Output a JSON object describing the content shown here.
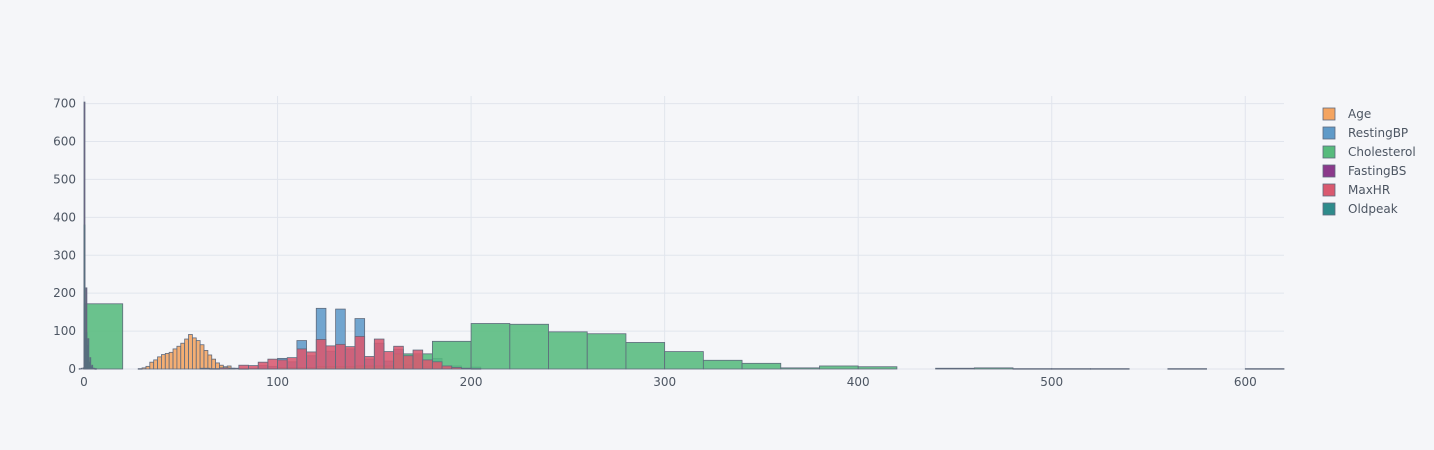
{
  "colors": {
    "background": "#f5f6f9",
    "grid": "#e1e5ed",
    "bar_stroke": "#5f6a7d",
    "text": "#4d5663"
  },
  "chart_data": {
    "type": "bar",
    "subtype": "overlaid-histogram",
    "xlim": [
      0,
      620
    ],
    "ylim": [
      0,
      720
    ],
    "x_ticks": [
      0,
      100,
      200,
      300,
      400,
      500,
      600
    ],
    "y_ticks": [
      0,
      100,
      200,
      300,
      400,
      500,
      600,
      700
    ],
    "grid": true,
    "legend_position": "top-right",
    "series": [
      {
        "name": "Age",
        "color": "#f4a460",
        "bin_width": 2,
        "bins": [
          [
            28,
            1
          ],
          [
            30,
            3
          ],
          [
            32,
            7
          ],
          [
            34,
            18
          ],
          [
            36,
            24
          ],
          [
            38,
            32
          ],
          [
            40,
            38
          ],
          [
            42,
            41
          ],
          [
            44,
            44
          ],
          [
            46,
            53
          ],
          [
            48,
            60
          ],
          [
            50,
            68
          ],
          [
            52,
            79
          ],
          [
            54,
            91
          ],
          [
            56,
            82
          ],
          [
            58,
            75
          ],
          [
            60,
            64
          ],
          [
            62,
            49
          ],
          [
            64,
            37
          ],
          [
            66,
            26
          ],
          [
            68,
            16
          ],
          [
            70,
            10
          ],
          [
            72,
            6
          ],
          [
            74,
            8
          ],
          [
            76,
            2
          ]
        ]
      },
      {
        "name": "RestingBP",
        "color": "#5f9ac8",
        "bin_width": 5,
        "bins": [
          [
            80,
            1
          ],
          [
            85,
            0
          ],
          [
            90,
            9
          ],
          [
            95,
            7
          ],
          [
            100,
            28
          ],
          [
            105,
            19
          ],
          [
            110,
            75
          ],
          [
            115,
            35
          ],
          [
            120,
            160
          ],
          [
            125,
            47
          ],
          [
            130,
            158
          ],
          [
            135,
            53
          ],
          [
            140,
            133
          ],
          [
            145,
            26
          ],
          [
            150,
            68
          ],
          [
            155,
            21
          ],
          [
            160,
            52
          ],
          [
            165,
            11
          ],
          [
            170,
            36
          ],
          [
            175,
            7
          ],
          [
            180,
            28
          ],
          [
            185,
            3
          ],
          [
            190,
            8
          ],
          [
            195,
            2
          ],
          [
            200,
            5
          ]
        ]
      },
      {
        "name": "Cholesterol",
        "color": "#57bb7d",
        "bin_width": 20,
        "bins": [
          [
            0,
            172
          ],
          [
            20,
            0
          ],
          [
            40,
            0
          ],
          [
            60,
            0
          ],
          [
            80,
            2
          ],
          [
            100,
            4
          ],
          [
            120,
            6
          ],
          [
            140,
            8
          ],
          [
            160,
            40
          ],
          [
            180,
            73
          ],
          [
            200,
            120
          ],
          [
            220,
            118
          ],
          [
            240,
            98
          ],
          [
            260,
            93
          ],
          [
            280,
            70
          ],
          [
            300,
            46
          ],
          [
            320,
            23
          ],
          [
            340,
            15
          ],
          [
            360,
            3
          ],
          [
            380,
            8
          ],
          [
            400,
            6
          ],
          [
            420,
            0
          ],
          [
            440,
            2
          ],
          [
            460,
            3
          ],
          [
            480,
            1
          ],
          [
            500,
            1
          ],
          [
            520,
            1
          ],
          [
            560,
            1
          ],
          [
            600,
            1
          ]
        ]
      },
      {
        "name": "FastingBS",
        "color": "#8b3a8b",
        "bin_width": 0.5,
        "bins": [
          [
            0,
            704
          ],
          [
            0.5,
            0
          ],
          [
            1,
            214
          ]
        ]
      },
      {
        "name": "MaxHR",
        "color": "#d9596f",
        "bin_width": 5,
        "bins": [
          [
            60,
            2
          ],
          [
            65,
            1
          ],
          [
            70,
            3
          ],
          [
            75,
            2
          ],
          [
            80,
            10
          ],
          [
            85,
            9
          ],
          [
            90,
            18
          ],
          [
            95,
            26
          ],
          [
            100,
            24
          ],
          [
            105,
            30
          ],
          [
            110,
            53
          ],
          [
            115,
            45
          ],
          [
            120,
            78
          ],
          [
            125,
            61
          ],
          [
            130,
            65
          ],
          [
            135,
            59
          ],
          [
            140,
            86
          ],
          [
            145,
            33
          ],
          [
            150,
            79
          ],
          [
            155,
            46
          ],
          [
            160,
            60
          ],
          [
            165,
            35
          ],
          [
            170,
            50
          ],
          [
            175,
            24
          ],
          [
            180,
            19
          ],
          [
            185,
            8
          ],
          [
            190,
            4
          ],
          [
            195,
            2
          ],
          [
            200,
            1
          ]
        ]
      },
      {
        "name": "Oldpeak",
        "color": "#2e8b8b",
        "bin_width": 0.5,
        "bins": [
          [
            -2.5,
            1
          ],
          [
            -1.5,
            2
          ],
          [
            -0.5,
            3
          ],
          [
            0,
            380
          ],
          [
            0.5,
            80
          ],
          [
            1,
            96
          ],
          [
            1.5,
            62
          ],
          [
            2,
            80
          ],
          [
            2.5,
            18
          ],
          [
            3,
            30
          ],
          [
            3.5,
            6
          ],
          [
            4,
            10
          ],
          [
            4.5,
            2
          ],
          [
            5,
            2
          ],
          [
            5.5,
            1
          ],
          [
            6,
            1
          ]
        ]
      }
    ]
  }
}
